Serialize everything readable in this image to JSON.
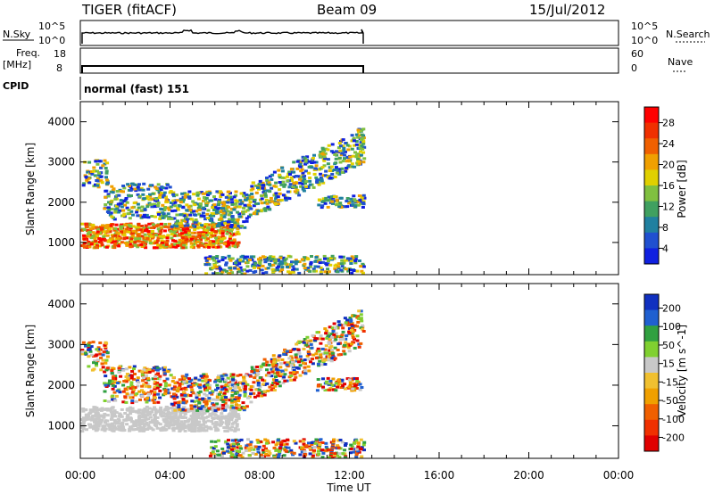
{
  "header": {
    "title": "TIGER (fitACF)",
    "beam": "Beam 09",
    "date": "15/Jul/2012"
  },
  "top_panels": {
    "nsky_label": "N.Sky",
    "nsky_ticks": [
      "10^5",
      "10^0"
    ],
    "nsearch_label": "N.Search",
    "nsearch_ticks": [
      "10^5",
      "10^0"
    ],
    "freq_label": "Freq.",
    "freq_unit": "[MHz]",
    "freq_ticks": [
      "18",
      "8"
    ],
    "nave_label": "Nave",
    "nave_ticks": [
      "60",
      "0"
    ],
    "cpid_label": "CPID",
    "cpid_text": "normal (fast) 151"
  },
  "chart_data": [
    {
      "type": "heatmap",
      "title": "",
      "xlabel": "Time UT",
      "ylabel": "Slant Range [km]",
      "x_ticks": [
        "00:00",
        "04:00",
        "08:00",
        "12:00",
        "16:00",
        "20:00",
        "00:00"
      ],
      "y_ticks": [
        4000,
        3000,
        2000,
        1000
      ],
      "ylim": [
        200,
        4500
      ],
      "colorbar": {
        "label": "Power [dB]",
        "ticks": [
          "28",
          "24",
          "20",
          "16",
          "12",
          "8",
          "4"
        ],
        "colors": [
          "#ff0000",
          "#f03000",
          "#f06000",
          "#f0a000",
          "#e0d000",
          "#80c040",
          "#40a060",
          "#2080a0",
          "#2050d0",
          "#1020e0"
        ]
      },
      "data_end_time": "12:40"
    },
    {
      "type": "heatmap",
      "title": "",
      "xlabel": "Time UT",
      "ylabel": "Slant Range [km]",
      "x_ticks": [
        "00:00",
        "04:00",
        "08:00",
        "12:00",
        "16:00",
        "20:00",
        "00:00"
      ],
      "y_ticks": [
        4000,
        3000,
        2000,
        1000
      ],
      "ylim": [
        200,
        4500
      ],
      "colorbar": {
        "label": "Velocity [m s^-1]",
        "ticks": [
          "200",
          "100",
          "50",
          "15",
          "-15",
          "-50",
          "-100",
          "-200"
        ],
        "colors": [
          "#1030c0",
          "#2060d0",
          "#30a040",
          "#80d030",
          "#c8c8c8",
          "#f0c030",
          "#f0a000",
          "#f06000",
          "#f03000",
          "#e00000"
        ]
      },
      "data_end_time": "12:40"
    }
  ],
  "footer": {
    "xlabel": "Time UT"
  }
}
